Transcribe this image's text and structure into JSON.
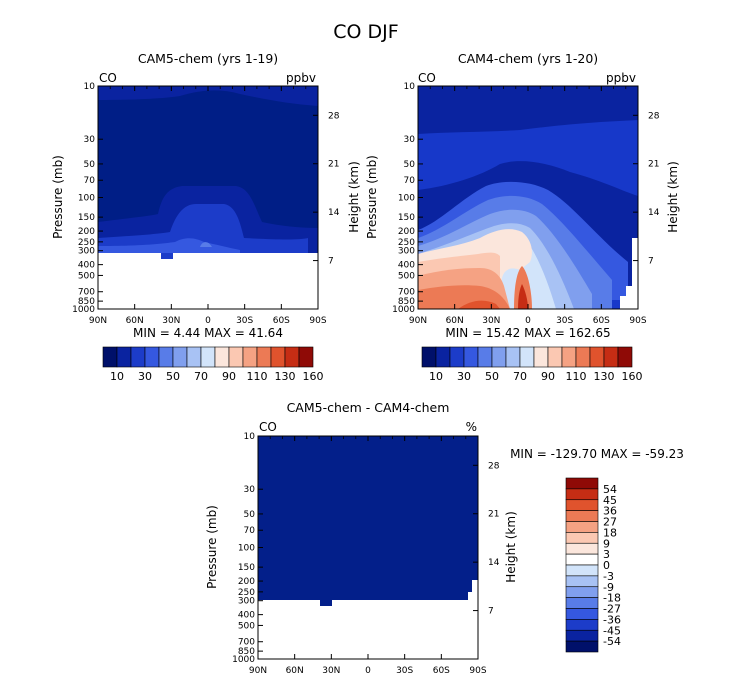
{
  "figure": {
    "title": "CO DJF"
  },
  "colors": {
    "panel1_fill": "#001e86",
    "panel2_base": "#1738c9",
    "diff_fill": "#031f8a",
    "levels": [
      "#00106a",
      "#0a23a0",
      "#1c3cc9",
      "#3558e0",
      "#587ce8",
      "#809fee",
      "#a8c2f4",
      "#d2e4fa",
      "#fbe6dc",
      "#fbc8b2",
      "#f5a283",
      "#ec7a55",
      "#e0532d",
      "#c62d14",
      "#8f0a06"
    ],
    "diff_levels": [
      "#00106a",
      "#0a23a0",
      "#1c3cc9",
      "#3558e0",
      "#587ce8",
      "#809fee",
      "#a8c2f4",
      "#d2e4fa",
      "#ffffff",
      "#fbe6dc",
      "#fbc8b2",
      "#f5a283",
      "#ec7a55",
      "#e0532d",
      "#c62d14",
      "#8f0a06"
    ]
  },
  "chart_data": [
    {
      "type": "heatmap",
      "title": "CAM5-chem (yrs 1-19)",
      "field_label": "CO",
      "units": "ppbv",
      "xlabel": "",
      "ylabel": "Pressure (mb)",
      "ylabel_right": "Height (km)",
      "x_ticks": [
        "90N",
        "60N",
        "30N",
        "0",
        "30S",
        "60S",
        "90S"
      ],
      "y_ticks": [
        "10",
        "30",
        "50",
        "70",
        "100",
        "150",
        "200",
        "250",
        "300",
        "400",
        "500",
        "700",
        "850",
        "1000"
      ],
      "height_ticks": [
        "28",
        "21",
        "14",
        "7"
      ],
      "stats": {
        "min": "4.44",
        "max": "41.64"
      },
      "colorbar_labels": [
        "10",
        "30",
        "50",
        "70",
        "90",
        "110",
        "130",
        "160"
      ],
      "ylim": [
        1000,
        10
      ],
      "xlim": [
        "90N",
        "90S"
      ],
      "model_top_mb": 10,
      "masked_below_mb": 300
    },
    {
      "type": "heatmap",
      "title": "CAM4-chem (yrs 1-20)",
      "field_label": "CO",
      "units": "ppbv",
      "xlabel": "",
      "ylabel": "Pressure (mb)",
      "ylabel_right": "Height (km)",
      "x_ticks": [
        "90N",
        "60N",
        "30N",
        "0",
        "30S",
        "60S",
        "90S"
      ],
      "y_ticks": [
        "10",
        "30",
        "50",
        "70",
        "100",
        "150",
        "200",
        "250",
        "300",
        "400",
        "500",
        "700",
        "850",
        "1000"
      ],
      "height_ticks": [
        "28",
        "21",
        "14",
        "7"
      ],
      "stats": {
        "min": "15.42",
        "max": "162.65"
      },
      "colorbar_labels": [
        "10",
        "30",
        "50",
        "70",
        "90",
        "110",
        "130",
        "160"
      ],
      "ylim": [
        1000,
        10
      ]
    },
    {
      "type": "heatmap",
      "title": "CAM5-chem - CAM4-chem",
      "field_label": "CO",
      "units": "%",
      "xlabel": "",
      "ylabel": "Pressure (mb)",
      "ylabel_right": "Height (km)",
      "x_ticks": [
        "90N",
        "60N",
        "30N",
        "0",
        "30S",
        "60S",
        "90S"
      ],
      "y_ticks": [
        "10",
        "30",
        "50",
        "70",
        "100",
        "150",
        "200",
        "250",
        "300",
        "400",
        "500",
        "700",
        "850",
        "1000"
      ],
      "height_ticks": [
        "28",
        "21",
        "14",
        "7"
      ],
      "stats": {
        "min": "-129.70",
        "max": "-59.23"
      },
      "colorbar_labels": [
        "54",
        "45",
        "36",
        "27",
        "18",
        "9",
        "3",
        "0",
        "-3",
        "-9",
        "-18",
        "-27",
        "-36",
        "-45",
        "-54"
      ],
      "ylim": [
        1000,
        10
      ]
    }
  ]
}
